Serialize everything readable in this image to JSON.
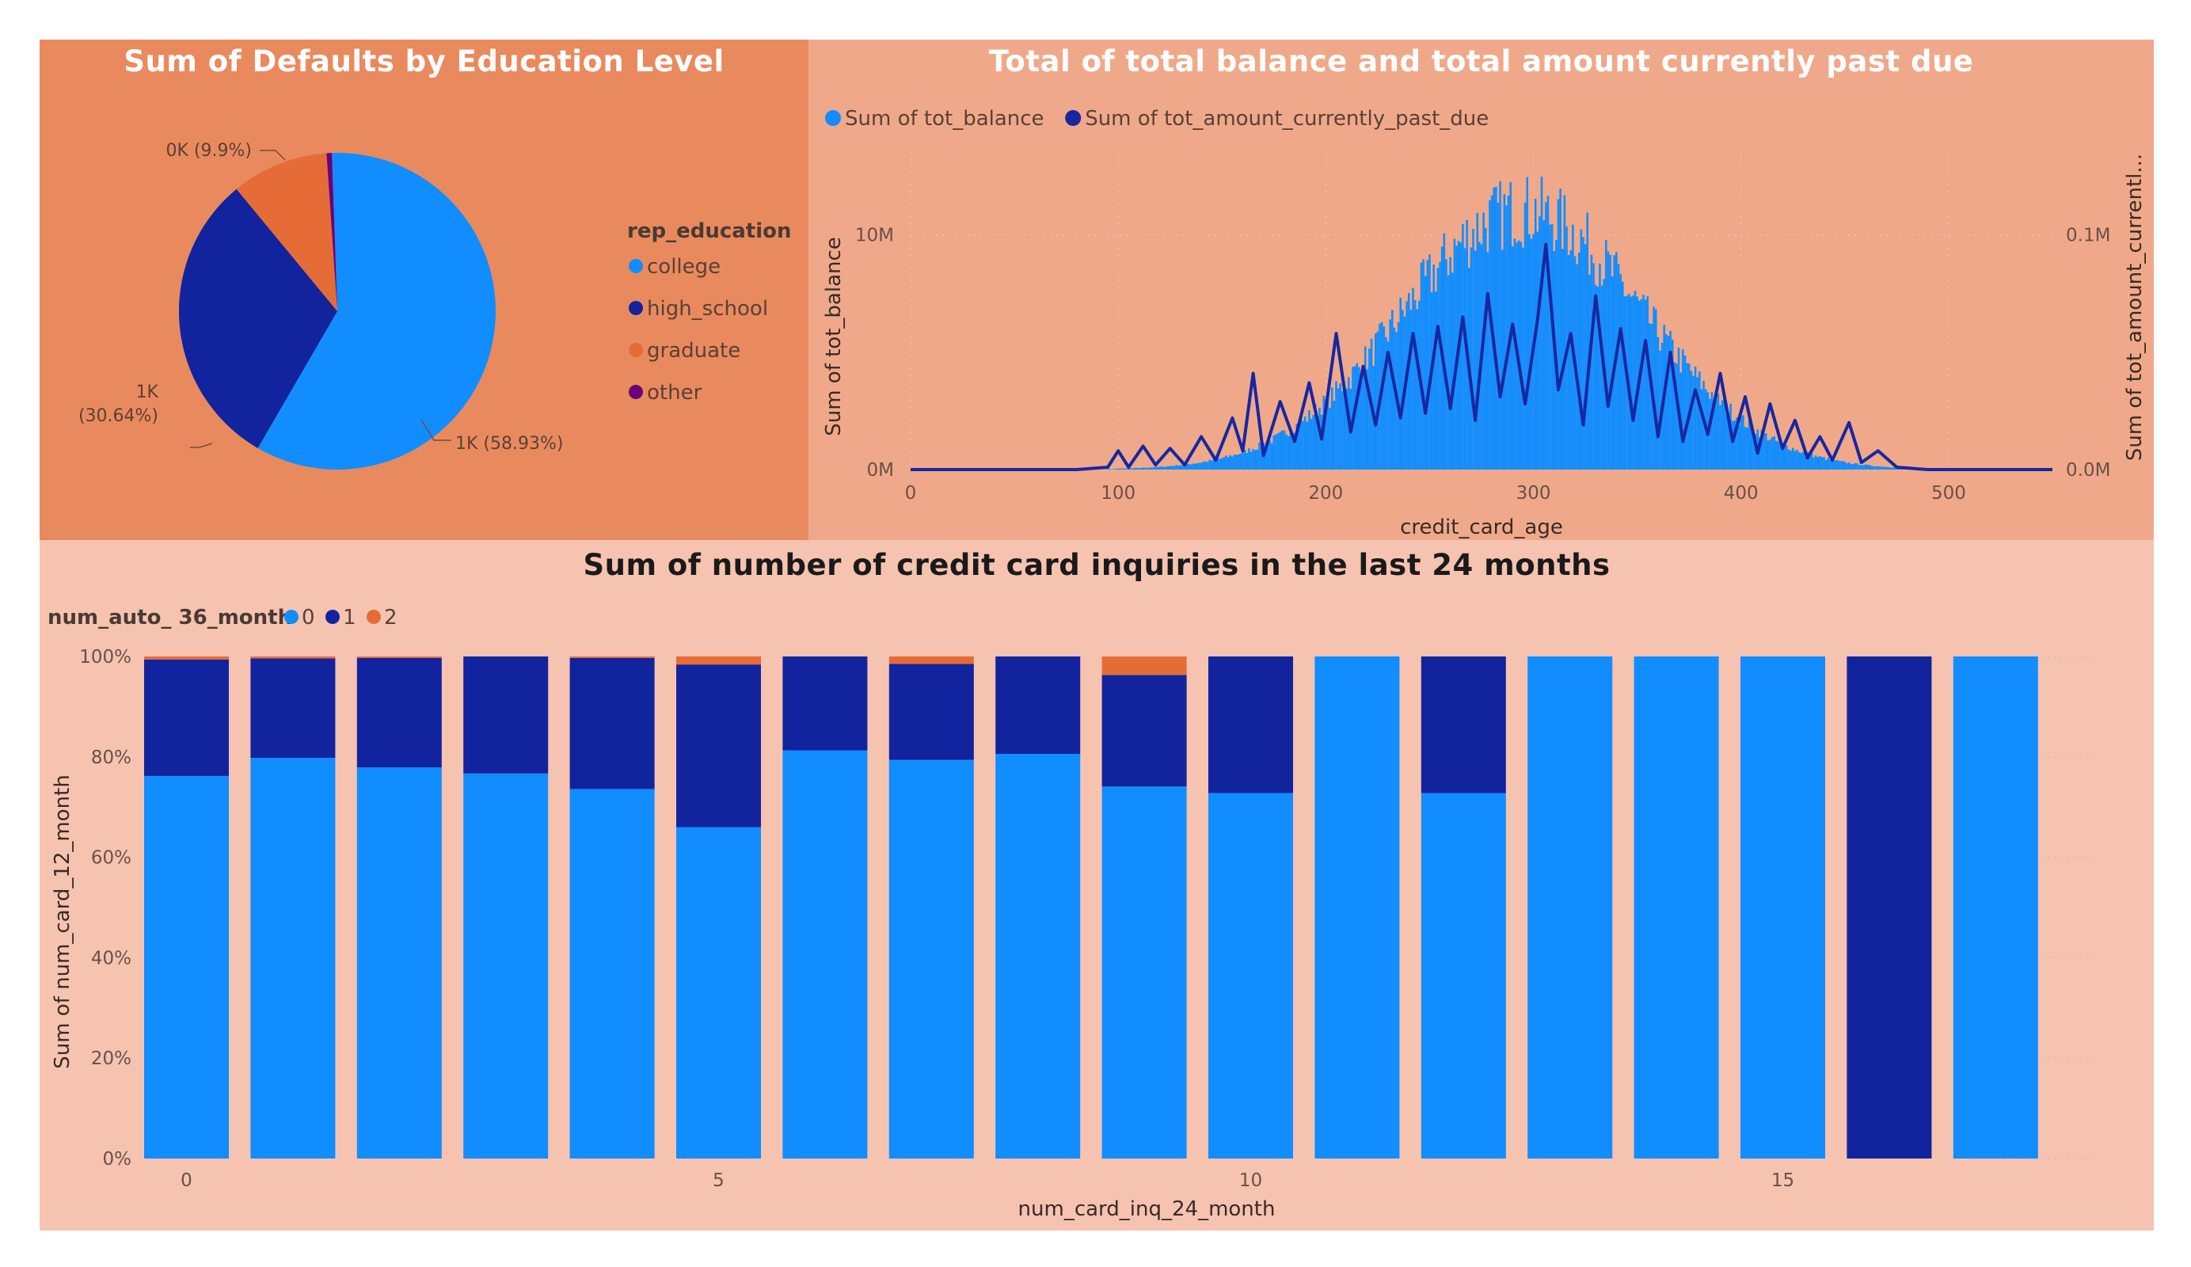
{
  "colors": {
    "light_blue": "#118dff",
    "dark_blue": "#12239e",
    "orange": "#e66c37",
    "purple": "#6b007b",
    "line_blue": "#1827a0"
  },
  "chart_data": [
    {
      "type": "pie",
      "title": "Sum of Defaults by Education Level",
      "legend_title": "rep_education",
      "legend_position": "right",
      "slices": [
        {
          "name": "college",
          "percent": 58.93,
          "label": "1K (58.93%)",
          "color": "#118dff"
        },
        {
          "name": "high_school",
          "percent": 30.64,
          "label": "1K\n(30.64%)",
          "color": "#12239e"
        },
        {
          "name": "graduate",
          "percent": 9.9,
          "label": "0K (9.9%)",
          "color": "#e66c37"
        },
        {
          "name": "other",
          "percent": 0.53,
          "label": "",
          "color": "#6b007b"
        }
      ]
    },
    {
      "type": "line",
      "title": "Total of total balance and total amount currently past due",
      "xlabel": "credit_card_age",
      "ylabel": "Sum of tot_balance",
      "y2label": "Sum of tot_amount_currentl...",
      "legend_position": "top-left",
      "xlim": [
        0,
        550
      ],
      "ylim": [
        0,
        13500000
      ],
      "y2lim": [
        0,
        0.135
      ],
      "x_ticks": [
        0,
        100,
        200,
        300,
        400,
        500
      ],
      "x_tick_labels": [
        "0",
        "100",
        "200",
        "300",
        "400",
        "500"
      ],
      "y_ticks": [
        0,
        10000000
      ],
      "y_tick_labels": [
        "0M",
        "10M"
      ],
      "y2_ticks": [
        0,
        0.1
      ],
      "y2_tick_labels": [
        "0.0M",
        "0.1M"
      ],
      "series": [
        {
          "name": "Sum of tot_balance",
          "axis": "left",
          "color": "#118dff",
          "style": "bars",
          "profile": {
            "center": 295,
            "peak": 11500000,
            "sigma": 58,
            "range": [
              80,
              540
            ]
          }
        },
        {
          "name": "Sum of tot_amount_currently_past_due",
          "axis": "right",
          "color": "#1827a0",
          "style": "line",
          "points": [
            [
              0,
              0
            ],
            [
              80,
              0
            ],
            [
              95,
              0.001
            ],
            [
              100,
              0.008
            ],
            [
              105,
              0.001
            ],
            [
              112,
              0.01
            ],
            [
              118,
              0.002
            ],
            [
              125,
              0.009
            ],
            [
              132,
              0.002
            ],
            [
              140,
              0.014
            ],
            [
              147,
              0.004
            ],
            [
              155,
              0.022
            ],
            [
              160,
              0.008
            ],
            [
              165,
              0.041
            ],
            [
              170,
              0.006
            ],
            [
              178,
              0.029
            ],
            [
              185,
              0.012
            ],
            [
              192,
              0.037
            ],
            [
              198,
              0.013
            ],
            [
              205,
              0.058
            ],
            [
              212,
              0.016
            ],
            [
              218,
              0.044
            ],
            [
              224,
              0.019
            ],
            [
              230,
              0.05
            ],
            [
              236,
              0.022
            ],
            [
              242,
              0.058
            ],
            [
              248,
              0.024
            ],
            [
              254,
              0.061
            ],
            [
              260,
              0.026
            ],
            [
              266,
              0.065
            ],
            [
              272,
              0.021
            ],
            [
              278,
              0.075
            ],
            [
              284,
              0.031
            ],
            [
              290,
              0.062
            ],
            [
              296,
              0.028
            ],
            [
              302,
              0.064
            ],
            [
              306,
              0.096
            ],
            [
              312,
              0.034
            ],
            [
              318,
              0.058
            ],
            [
              324,
              0.019
            ],
            [
              330,
              0.074
            ],
            [
              336,
              0.027
            ],
            [
              342,
              0.06
            ],
            [
              348,
              0.021
            ],
            [
              354,
              0.055
            ],
            [
              360,
              0.014
            ],
            [
              366,
              0.05
            ],
            [
              372,
              0.012
            ],
            [
              378,
              0.034
            ],
            [
              384,
              0.015
            ],
            [
              390,
              0.041
            ],
            [
              396,
              0.012
            ],
            [
              402,
              0.031
            ],
            [
              408,
              0.007
            ],
            [
              414,
              0.028
            ],
            [
              420,
              0.009
            ],
            [
              426,
              0.021
            ],
            [
              432,
              0.005
            ],
            [
              438,
              0.014
            ],
            [
              444,
              0.004
            ],
            [
              452,
              0.02
            ],
            [
              458,
              0.003
            ],
            [
              466,
              0.008
            ],
            [
              475,
              0.001
            ],
            [
              490,
              0
            ],
            [
              550,
              0
            ]
          ]
        }
      ]
    },
    {
      "type": "bar",
      "stacked": "100%",
      "title": "Sum of number of credit card inquiries in the last 24 months",
      "xlabel": "num_card_inq_24_month",
      "ylabel": "Sum of num_card_12_month",
      "legend_title": "num_auto_ 36_month",
      "legend_position": "top-left",
      "ylim": [
        0,
        100
      ],
      "y_ticks": [
        0,
        20,
        40,
        60,
        80,
        100
      ],
      "y_tick_labels": [
        "0%",
        "20%",
        "40%",
        "60%",
        "80%",
        "100%"
      ],
      "x_tick_labels": [
        {
          "index": 0,
          "label": "0"
        },
        {
          "index": 5,
          "label": "5"
        },
        {
          "index": 10,
          "label": "10"
        },
        {
          "index": 15,
          "label": "15"
        }
      ],
      "categories": [
        0,
        1,
        2,
        3,
        4,
        5,
        6,
        7,
        8,
        9,
        10,
        11,
        12,
        13,
        14,
        15,
        16,
        17
      ],
      "series": [
        {
          "name": "0",
          "color": "#118dff",
          "values": [
            76.2,
            79.8,
            77.9,
            76.7,
            73.6,
            66.0,
            81.3,
            79.4,
            80.6,
            74.1,
            72.8,
            100,
            72.8,
            100,
            100,
            100,
            0,
            100
          ]
        },
        {
          "name": "1",
          "color": "#12239e",
          "values": [
            23.2,
            19.8,
            21.8,
            23.3,
            26.1,
            32.4,
            18.7,
            19.1,
            19.4,
            22.2,
            27.2,
            0,
            27.2,
            0,
            0,
            0,
            100,
            0
          ]
        },
        {
          "name": "2",
          "color": "#e66c37",
          "values": [
            0.6,
            0.4,
            0.3,
            0,
            0.3,
            1.6,
            0,
            1.5,
            0,
            3.7,
            0,
            0,
            0,
            0,
            0,
            0,
            0,
            0
          ]
        }
      ]
    }
  ]
}
